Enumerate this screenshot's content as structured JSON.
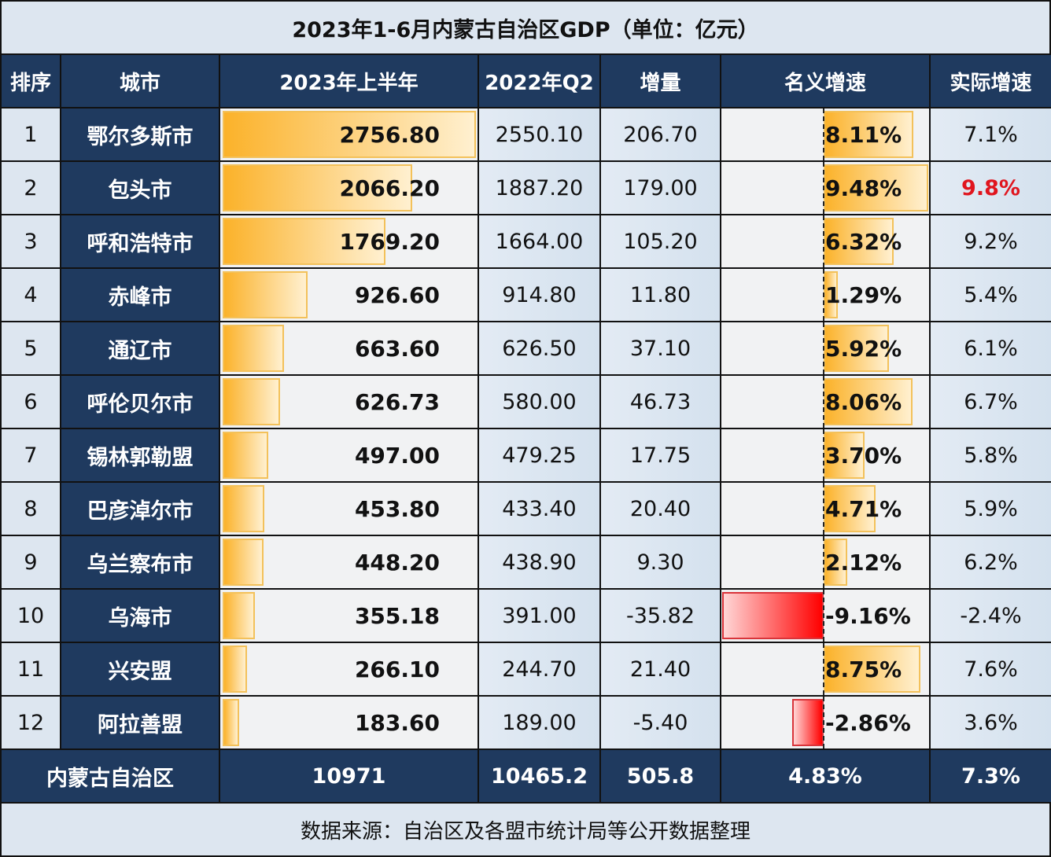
{
  "title": "2023年1-6月内蒙古自治区GDP（单位：亿元）",
  "headers": [
    "排序",
    "城市",
    "2023年上半年",
    "2022年Q2",
    "增量",
    "名义增速",
    "实际增速"
  ],
  "rows": [
    {
      "rank": "1",
      "city": "鄂尔多斯市",
      "h1_2023": "2756.80",
      "q2_2022": "2550.10",
      "increase": "206.70",
      "nominal": "8.11%",
      "real": "7.1%"
    },
    {
      "rank": "2",
      "city": "包头市",
      "h1_2023": "2066.20",
      "q2_2022": "1887.20",
      "increase": "179.00",
      "nominal": "9.48%",
      "real": "9.8%"
    },
    {
      "rank": "3",
      "city": "呼和浩特市",
      "h1_2023": "1769.20",
      "q2_2022": "1664.00",
      "increase": "105.20",
      "nominal": "6.32%",
      "real": "9.2%"
    },
    {
      "rank": "4",
      "city": "赤峰市",
      "h1_2023": "926.60",
      "q2_2022": "914.80",
      "increase": "11.80",
      "nominal": "1.29%",
      "real": "5.4%"
    },
    {
      "rank": "5",
      "city": "通辽市",
      "h1_2023": "663.60",
      "q2_2022": "626.50",
      "increase": "37.10",
      "nominal": "5.92%",
      "real": "6.1%"
    },
    {
      "rank": "6",
      "city": "呼伦贝尔市",
      "h1_2023": "626.73",
      "q2_2022": "580.00",
      "increase": "46.73",
      "nominal": "8.06%",
      "real": "6.7%"
    },
    {
      "rank": "7",
      "city": "锡林郭勒盟",
      "h1_2023": "497.00",
      "q2_2022": "479.25",
      "increase": "17.75",
      "nominal": "3.70%",
      "real": "5.8%"
    },
    {
      "rank": "8",
      "city": "巴彦淖尔市",
      "h1_2023": "453.80",
      "q2_2022": "433.40",
      "increase": "20.40",
      "nominal": "4.71%",
      "real": "5.9%"
    },
    {
      "rank": "9",
      "city": "乌兰察布市",
      "h1_2023": "448.20",
      "q2_2022": "438.90",
      "increase": "9.30",
      "nominal": "2.12%",
      "real": "6.2%"
    },
    {
      "rank": "10",
      "city": "乌海市",
      "h1_2023": "355.18",
      "q2_2022": "391.00",
      "increase": "-35.82",
      "nominal": "-9.16%",
      "real": "-2.4%"
    },
    {
      "rank": "11",
      "city": "兴安盟",
      "h1_2023": "266.10",
      "q2_2022": "244.70",
      "increase": "21.40",
      "nominal": "8.75%",
      "real": "7.6%"
    },
    {
      "rank": "12",
      "city": "阿拉善盟",
      "h1_2023": "183.60",
      "q2_2022": "189.00",
      "increase": "-5.40",
      "nominal": "-2.86%",
      "real": "3.6%"
    }
  ],
  "total": {
    "label": "内蒙古自治区",
    "h1_2023": "10971",
    "q2_2022": "10465.2",
    "increase": "505.8",
    "nominal": "4.83%",
    "real": "7.3%"
  },
  "footer": "数据来源：自治区及各盟市统计局等公开数据整理",
  "colors": {
    "header_bg": "#1f3a5f",
    "bar_gold": "#fbb22a",
    "bar_red": "#ff0000",
    "highlight_red": "#e0151e",
    "light_bg": "#dde6f0"
  },
  "chart_data": {
    "type": "table",
    "title": "2023年1-6月内蒙古自治区GDP（单位：亿元）",
    "columns": [
      "排序",
      "城市",
      "2023年上半年",
      "2022年Q2",
      "增量",
      "名义增速",
      "实际增速"
    ],
    "categories": [
      "鄂尔多斯市",
      "包头市",
      "呼和浩特市",
      "赤峰市",
      "通辽市",
      "呼伦贝尔市",
      "锡林郭勒盟",
      "巴彦淖尔市",
      "乌兰察布市",
      "乌海市",
      "兴安盟",
      "阿拉善盟"
    ],
    "series": [
      {
        "name": "2023年上半年",
        "values": [
          2756.8,
          2066.2,
          1769.2,
          926.6,
          663.6,
          626.73,
          497.0,
          453.8,
          448.2,
          355.18,
          266.1,
          183.6
        ]
      },
      {
        "name": "2022年Q2",
        "values": [
          2550.1,
          1887.2,
          1664.0,
          914.8,
          626.5,
          580.0,
          479.25,
          433.4,
          438.9,
          391.0,
          244.7,
          189.0
        ]
      },
      {
        "name": "增量",
        "values": [
          206.7,
          179.0,
          105.2,
          11.8,
          37.1,
          46.73,
          17.75,
          20.4,
          9.3,
          -35.82,
          21.4,
          -5.4
        ]
      },
      {
        "name": "名义增速(%)",
        "values": [
          8.11,
          9.48,
          6.32,
          1.29,
          5.92,
          8.06,
          3.7,
          4.71,
          2.12,
          -9.16,
          8.75,
          -2.86
        ]
      },
      {
        "name": "实际增速(%)",
        "values": [
          7.1,
          9.8,
          9.2,
          5.4,
          6.1,
          6.7,
          5.8,
          5.9,
          6.2,
          -2.4,
          7.6,
          3.6
        ]
      }
    ],
    "total": {
      "name": "内蒙古自治区",
      "2023年上半年": 10971,
      "2022年Q2": 10465.2,
      "增量": 505.8,
      "名义增速": 4.83,
      "实际增速": 7.3
    },
    "annotations": [
      "数据来源：自治区及各盟市统计局等公开数据整理"
    ]
  }
}
